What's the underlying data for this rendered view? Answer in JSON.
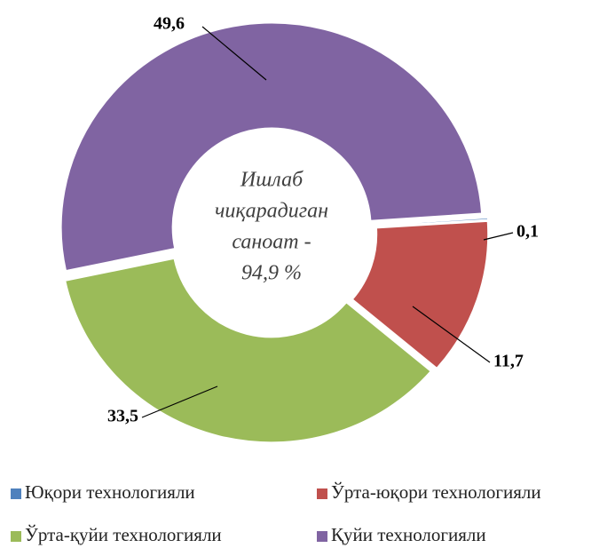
{
  "chart_data": {
    "type": "donut",
    "center_label": [
      "Ишлаб",
      "чиқарадиган",
      "саноат -",
      "94,9 %"
    ],
    "categories": [
      "Юқори технологияли",
      "Ўрта-юқори технологияли",
      "Ўрта-қуйи технологияли",
      "Қуйи технологияли"
    ],
    "values": [
      0.1,
      11.7,
      33.5,
      49.6
    ],
    "value_labels": [
      "0,1",
      "11,7",
      "33,5",
      "49,6"
    ],
    "colors": [
      "#4f81bd",
      "#c0504d",
      "#9bbb59",
      "#8064a2"
    ],
    "legend": "bottom"
  }
}
